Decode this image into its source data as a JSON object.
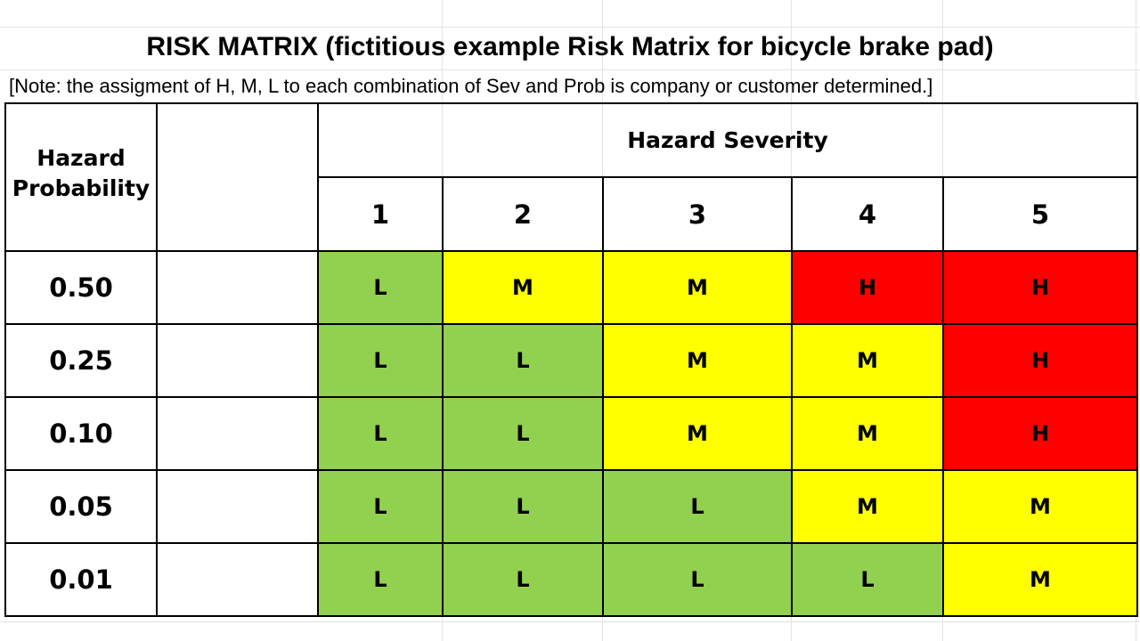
{
  "title": "RISK MATRIX (fictitious example Risk Matrix for bicycle brake pad)",
  "note": "[Note: the assigment of H, M, L to each combination of Sev and Prob is company or customer determined.]",
  "probability_header": "Hazard Probability",
  "severity_header": "Hazard Severity",
  "severity_levels": [
    "1",
    "2",
    "3",
    "4",
    "5"
  ],
  "rows": [
    {
      "probability": "0.50",
      "ratings": [
        "L",
        "M",
        "M",
        "H",
        "H"
      ]
    },
    {
      "probability": "0.25",
      "ratings": [
        "L",
        "L",
        "M",
        "M",
        "H"
      ]
    },
    {
      "probability": "0.10",
      "ratings": [
        "L",
        "L",
        "M",
        "M",
        "H"
      ]
    },
    {
      "probability": "0.05",
      "ratings": [
        "L",
        "L",
        "L",
        "M",
        "M"
      ]
    },
    {
      "probability": "0.01",
      "ratings": [
        "L",
        "L",
        "L",
        "L",
        "M"
      ]
    }
  ],
  "colors": {
    "L": "#92d050",
    "M": "#ffff00",
    "H": "#ff0000"
  }
}
